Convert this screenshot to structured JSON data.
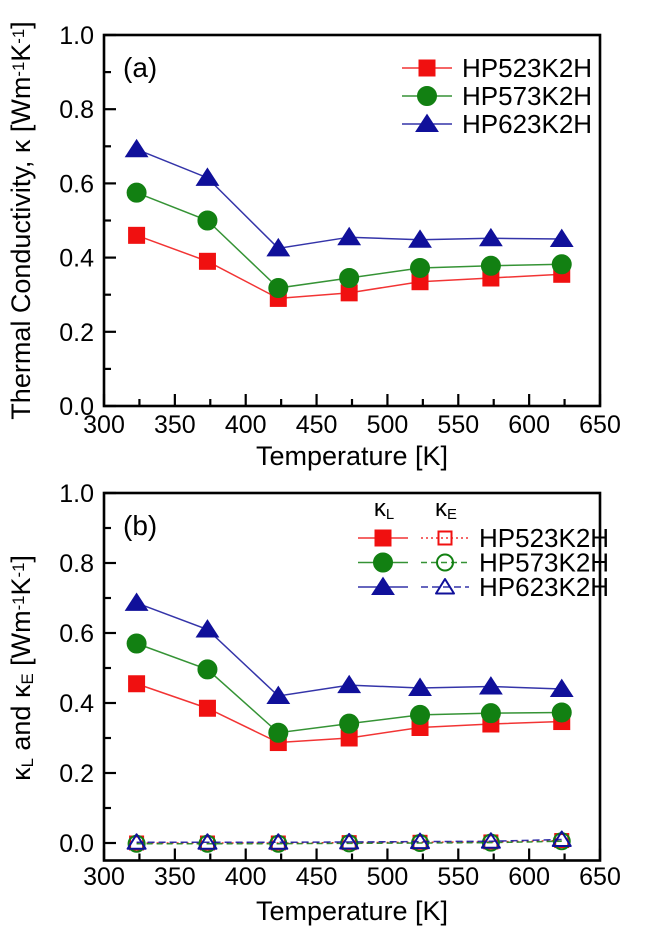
{
  "page": {
    "background": "#ffffff"
  },
  "chart_data": [
    {
      "id": "a",
      "type": "line",
      "panel_label": "(a)",
      "xlabel": "Temperature [K]",
      "ylabel_parts": [
        {
          "t": "Thermal Conductivity, "
        },
        {
          "t": "κ"
        },
        {
          "t": " [Wm"
        },
        {
          "t": "-1",
          "sup": true
        },
        {
          "t": "K"
        },
        {
          "t": "-1",
          "sup": true
        },
        {
          "t": "]"
        }
      ],
      "xlim": [
        300,
        650
      ],
      "ylim": [
        0.0,
        1.0
      ],
      "x_ticks": [
        300,
        350,
        400,
        450,
        500,
        550,
        600,
        650
      ],
      "x_minor_step": 25,
      "y_ticks": [
        0.0,
        0.2,
        0.4,
        0.6,
        0.8,
        1.0
      ],
      "y_minor_step": 0.1,
      "x": [
        323,
        373,
        423,
        473,
        523,
        573,
        623
      ],
      "series": [
        {
          "name": "HP523K2H",
          "group": "k",
          "color": "#f01010",
          "marker": "square",
          "filled": true,
          "dash": null,
          "values": [
            0.46,
            0.39,
            0.29,
            0.305,
            0.335,
            0.345,
            0.355
          ]
        },
        {
          "name": "HP573K2H",
          "group": "k",
          "color": "#128012",
          "marker": "circle",
          "filled": true,
          "dash": null,
          "values": [
            0.575,
            0.5,
            0.318,
            0.345,
            0.372,
            0.378,
            0.382
          ]
        },
        {
          "name": "HP623K2H",
          "group": "k",
          "color": "#10109a",
          "marker": "triangle",
          "filled": true,
          "dash": null,
          "values": [
            0.692,
            0.615,
            0.425,
            0.455,
            0.448,
            0.452,
            0.45
          ]
        }
      ],
      "legend": {
        "type": "simple",
        "entries": [
          "HP523K2H",
          "HP573K2H",
          "HP623K2H"
        ]
      }
    },
    {
      "id": "b",
      "type": "line",
      "panel_label": "(b)",
      "xlabel": "Temperature [K]",
      "ylabel_parts": [
        {
          "t": "κ"
        },
        {
          "t": "L",
          "sub": true
        },
        {
          "t": " and "
        },
        {
          "t": "κ"
        },
        {
          "t": "E",
          "sub": true
        },
        {
          "t": " [Wm"
        },
        {
          "t": "-1",
          "sup": true
        },
        {
          "t": "K"
        },
        {
          "t": "-1",
          "sup": true
        },
        {
          "t": "]"
        }
      ],
      "xlim": [
        300,
        650
      ],
      "ylim": [
        -0.05,
        1.0
      ],
      "x_ticks": [
        300,
        350,
        400,
        450,
        500,
        550,
        600,
        650
      ],
      "x_minor_step": 25,
      "y_ticks": [
        0.0,
        0.2,
        0.4,
        0.6,
        0.8,
        1.0
      ],
      "y_minor_step": 0.1,
      "x": [
        323,
        373,
        423,
        473,
        523,
        573,
        623
      ],
      "series": [
        {
          "name": "HP523K2H",
          "group": "kL",
          "color": "#f01010",
          "marker": "square",
          "filled": true,
          "dash": null,
          "values": [
            0.455,
            0.385,
            0.287,
            0.3,
            0.33,
            0.34,
            0.347
          ]
        },
        {
          "name": "HP573K2H",
          "group": "kL",
          "color": "#128012",
          "marker": "circle",
          "filled": true,
          "dash": null,
          "values": [
            0.57,
            0.496,
            0.315,
            0.341,
            0.366,
            0.371,
            0.373
          ]
        },
        {
          "name": "HP623K2H",
          "group": "kL",
          "color": "#10109a",
          "marker": "triangle",
          "filled": true,
          "dash": null,
          "values": [
            0.686,
            0.61,
            0.42,
            0.451,
            0.443,
            0.447,
            0.44
          ]
        },
        {
          "name": "HP523K2H",
          "group": "kE",
          "color": "#f01010",
          "marker": "square",
          "filled": false,
          "dash": "2 3",
          "values": [
            0.0,
            0.0,
            0.0,
            0.001,
            0.002,
            0.003,
            0.007
          ]
        },
        {
          "name": "HP573K2H",
          "group": "kE",
          "color": "#128012",
          "marker": "circle",
          "filled": false,
          "dash": "6 4",
          "values": [
            -0.002,
            -0.002,
            -0.002,
            -0.001,
            0.0,
            0.001,
            0.005
          ]
        },
        {
          "name": "HP623K2H",
          "group": "kE",
          "color": "#10109a",
          "marker": "triangle",
          "filled": false,
          "dash": "7 4",
          "values": [
            0.002,
            0.002,
            0.002,
            0.003,
            0.004,
            0.005,
            0.01
          ]
        }
      ],
      "legend": {
        "type": "two_col",
        "entries": [
          "HP523K2H",
          "HP573K2H",
          "HP623K2H"
        ],
        "col_headers": [
          [
            {
              "t": "κ"
            },
            {
              "t": "L",
              "sub": true
            }
          ],
          [
            {
              "t": "κ"
            },
            {
              "t": "E",
              "sub": true
            }
          ]
        ]
      }
    }
  ]
}
